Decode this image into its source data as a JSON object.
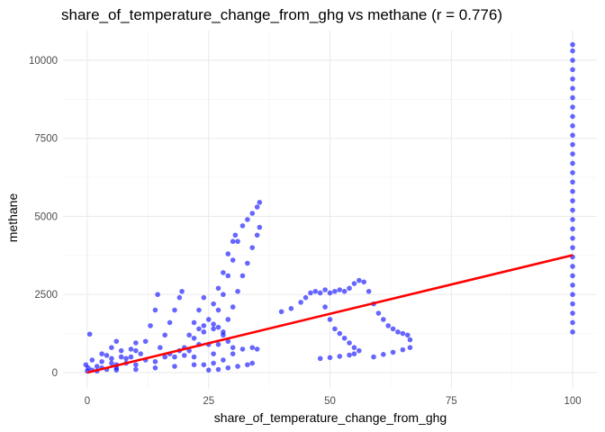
{
  "chart_data": {
    "type": "scatter",
    "title": "share_of_temperature_change_from_ghg vs methane (r = 0.776)",
    "xlabel": "share_of_temperature_change_from_ghg",
    "ylabel": "methane",
    "xlim": [
      -5,
      105
    ],
    "ylim": [
      -520,
      10950
    ],
    "x_ticks": [
      0,
      25,
      50,
      75,
      100
    ],
    "y_ticks": [
      0,
      2500,
      5000,
      7500,
      10000
    ],
    "x_tick_labels": [
      "0",
      "25",
      "50",
      "75",
      "100"
    ],
    "y_tick_labels": [
      "0",
      "2500",
      "5000",
      "7500",
      "10000"
    ],
    "grid": true,
    "legend": "none",
    "colors": {
      "points": "#0000ff",
      "fit_line": "#ff0000",
      "grid": "#ebebeb"
    },
    "fit_line": {
      "x": [
        0,
        100
      ],
      "y": [
        0,
        3760
      ]
    },
    "series": [
      {
        "values": [
          {
            "x": 0,
            "y": 50
          },
          {
            "x": 0.2,
            "y": 150
          },
          {
            "x": -0.3,
            "y": 250
          },
          {
            "x": 0.5,
            "y": 1230
          },
          {
            "x": 1,
            "y": 80
          },
          {
            "x": 2,
            "y": 200
          },
          {
            "x": 3,
            "y": 350
          },
          {
            "x": 4,
            "y": 550
          },
          {
            "x": 5,
            "y": 800
          },
          {
            "x": 6,
            "y": 1000
          },
          {
            "x": 3,
            "y": 150
          },
          {
            "x": 5,
            "y": 300
          },
          {
            "x": 7,
            "y": 500
          },
          {
            "x": 9,
            "y": 750
          },
          {
            "x": 10,
            "y": 950
          },
          {
            "x": 4,
            "y": 100
          },
          {
            "x": 6,
            "y": 250
          },
          {
            "x": 8,
            "y": 450
          },
          {
            "x": 10,
            "y": 700
          },
          {
            "x": 12,
            "y": 1000
          },
          {
            "x": 13,
            "y": 1500
          },
          {
            "x": 14,
            "y": 2000
          },
          {
            "x": 14.5,
            "y": 2500
          },
          {
            "x": 6,
            "y": 150
          },
          {
            "x": 8,
            "y": 300
          },
          {
            "x": 10,
            "y": 250
          },
          {
            "x": 12,
            "y": 400
          },
          {
            "x": 14,
            "y": 350
          },
          {
            "x": 16,
            "y": 500
          },
          {
            "x": 15,
            "y": 800
          },
          {
            "x": 16,
            "y": 1200
          },
          {
            "x": 17,
            "y": 1600
          },
          {
            "x": 18,
            "y": 2000
          },
          {
            "x": 19,
            "y": 2400
          },
          {
            "x": 19.5,
            "y": 2600
          },
          {
            "x": 17,
            "y": 600
          },
          {
            "x": 18,
            "y": 500
          },
          {
            "x": 19,
            "y": 700
          },
          {
            "x": 20,
            "y": 550
          },
          {
            "x": 20,
            "y": 800
          },
          {
            "x": 21,
            "y": 1200
          },
          {
            "x": 22,
            "y": 1600
          },
          {
            "x": 23,
            "y": 2000
          },
          {
            "x": 24,
            "y": 2400
          },
          {
            "x": 22,
            "y": 500
          },
          {
            "x": 23,
            "y": 900
          },
          {
            "x": 24,
            "y": 1300
          },
          {
            "x": 25,
            "y": 1700
          },
          {
            "x": 26,
            "y": 2200
          },
          {
            "x": 27,
            "y": 2700
          },
          {
            "x": 28,
            "y": 3200
          },
          {
            "x": 29,
            "y": 3800
          },
          {
            "x": 30,
            "y": 4200
          },
          {
            "x": 30.5,
            "y": 4400
          },
          {
            "x": 25,
            "y": 900
          },
          {
            "x": 26,
            "y": 1400
          },
          {
            "x": 27,
            "y": 2000
          },
          {
            "x": 28,
            "y": 2500
          },
          {
            "x": 29,
            "y": 3100
          },
          {
            "x": 30,
            "y": 3600
          },
          {
            "x": 31,
            "y": 4200
          },
          {
            "x": 32,
            "y": 4700
          },
          {
            "x": 33,
            "y": 4900
          },
          {
            "x": 34,
            "y": 5100
          },
          {
            "x": 35,
            "y": 5300
          },
          {
            "x": 35.5,
            "y": 5450
          },
          {
            "x": 26,
            "y": 600
          },
          {
            "x": 27,
            "y": 900
          },
          {
            "x": 28,
            "y": 1300
          },
          {
            "x": 29,
            "y": 1700
          },
          {
            "x": 30,
            "y": 2100
          },
          {
            "x": 31,
            "y": 2600
          },
          {
            "x": 32,
            "y": 3100
          },
          {
            "x": 33,
            "y": 3500
          },
          {
            "x": 34,
            "y": 4000
          },
          {
            "x": 35,
            "y": 4400
          },
          {
            "x": 35.5,
            "y": 4650
          },
          {
            "x": 21,
            "y": 700
          },
          {
            "x": 22,
            "y": 1100
          },
          {
            "x": 23,
            "y": 1400
          },
          {
            "x": 24,
            "y": 1500
          },
          {
            "x": 26,
            "y": 1550
          },
          {
            "x": 27,
            "y": 1450
          },
          {
            "x": 28,
            "y": 1200
          },
          {
            "x": 29,
            "y": 1000
          },
          {
            "x": 30,
            "y": 800
          },
          {
            "x": 24,
            "y": 250
          },
          {
            "x": 26,
            "y": 300
          },
          {
            "x": 28,
            "y": 400
          },
          {
            "x": 30,
            "y": 600
          },
          {
            "x": 32,
            "y": 750
          },
          {
            "x": 34,
            "y": 800
          },
          {
            "x": 35,
            "y": 750
          },
          {
            "x": 25,
            "y": 80
          },
          {
            "x": 27,
            "y": 100
          },
          {
            "x": 29,
            "y": 150
          },
          {
            "x": 31,
            "y": 200
          },
          {
            "x": 33,
            "y": 250
          },
          {
            "x": 34,
            "y": 300
          },
          {
            "x": 1,
            "y": 400
          },
          {
            "x": 3,
            "y": 600
          },
          {
            "x": 5,
            "y": 450
          },
          {
            "x": 7,
            "y": 700
          },
          {
            "x": 9,
            "y": 500
          },
          {
            "x": 11,
            "y": 600
          },
          {
            "x": 2,
            "y": 50
          },
          {
            "x": 6,
            "y": 80
          },
          {
            "x": 10,
            "y": 100
          },
          {
            "x": 14,
            "y": 150
          },
          {
            "x": 18,
            "y": 200
          },
          {
            "x": 22,
            "y": 250
          },
          {
            "x": 40,
            "y": 1950
          },
          {
            "x": 42,
            "y": 2050
          },
          {
            "x": 44,
            "y": 2250
          },
          {
            "x": 45,
            "y": 2400
          },
          {
            "x": 46,
            "y": 2550
          },
          {
            "x": 47,
            "y": 2600
          },
          {
            "x": 48,
            "y": 2550
          },
          {
            "x": 49,
            "y": 2650
          },
          {
            "x": 50,
            "y": 2550
          },
          {
            "x": 51,
            "y": 2600
          },
          {
            "x": 52,
            "y": 2650
          },
          {
            "x": 53,
            "y": 2600
          },
          {
            "x": 54,
            "y": 2700
          },
          {
            "x": 55,
            "y": 2850
          },
          {
            "x": 56,
            "y": 2950
          },
          {
            "x": 57,
            "y": 2900
          },
          {
            "x": 49,
            "y": 2100
          },
          {
            "x": 50,
            "y": 1700
          },
          {
            "x": 51,
            "y": 1400
          },
          {
            "x": 52,
            "y": 1250
          },
          {
            "x": 53,
            "y": 1100
          },
          {
            "x": 54,
            "y": 950
          },
          {
            "x": 55,
            "y": 800
          },
          {
            "x": 56,
            "y": 700
          },
          {
            "x": 48,
            "y": 450
          },
          {
            "x": 50,
            "y": 480
          },
          {
            "x": 52,
            "y": 520
          },
          {
            "x": 54,
            "y": 560
          },
          {
            "x": 55,
            "y": 600
          },
          {
            "x": 58,
            "y": 2600
          },
          {
            "x": 59,
            "y": 2200
          },
          {
            "x": 60,
            "y": 1900
          },
          {
            "x": 61,
            "y": 1700
          },
          {
            "x": 62,
            "y": 1500
          },
          {
            "x": 63,
            "y": 1400
          },
          {
            "x": 64,
            "y": 1300
          },
          {
            "x": 65,
            "y": 1250
          },
          {
            "x": 66,
            "y": 1200
          },
          {
            "x": 66.5,
            "y": 1050
          },
          {
            "x": 59,
            "y": 500
          },
          {
            "x": 61,
            "y": 580
          },
          {
            "x": 63,
            "y": 650
          },
          {
            "x": 65,
            "y": 730
          },
          {
            "x": 66.5,
            "y": 800
          },
          {
            "x": 100,
            "y": 1300
          },
          {
            "x": 100,
            "y": 1600
          },
          {
            "x": 100,
            "y": 1900
          },
          {
            "x": 100,
            "y": 2200
          },
          {
            "x": 100,
            "y": 2500
          },
          {
            "x": 100,
            "y": 2800
          },
          {
            "x": 100,
            "y": 3100
          },
          {
            "x": 100,
            "y": 3400
          },
          {
            "x": 100,
            "y": 3700
          },
          {
            "x": 100,
            "y": 4000
          },
          {
            "x": 100,
            "y": 4300
          },
          {
            "x": 100,
            "y": 4600
          },
          {
            "x": 100,
            "y": 4900
          },
          {
            "x": 100,
            "y": 5200
          },
          {
            "x": 100,
            "y": 5500
          },
          {
            "x": 100,
            "y": 5800
          },
          {
            "x": 100,
            "y": 6100
          },
          {
            "x": 100,
            "y": 6400
          },
          {
            "x": 100,
            "y": 6700
          },
          {
            "x": 100,
            "y": 7000
          },
          {
            "x": 100,
            "y": 7300
          },
          {
            "x": 100,
            "y": 7600
          },
          {
            "x": 100,
            "y": 7900
          },
          {
            "x": 100,
            "y": 8200
          },
          {
            "x": 100,
            "y": 8500
          },
          {
            "x": 100,
            "y": 8800
          },
          {
            "x": 100,
            "y": 9100
          },
          {
            "x": 100,
            "y": 9400
          },
          {
            "x": 100,
            "y": 9700
          },
          {
            "x": 100,
            "y": 10000
          },
          {
            "x": 100,
            "y": 10300
          },
          {
            "x": 100,
            "y": 10500
          }
        ]
      }
    ]
  }
}
